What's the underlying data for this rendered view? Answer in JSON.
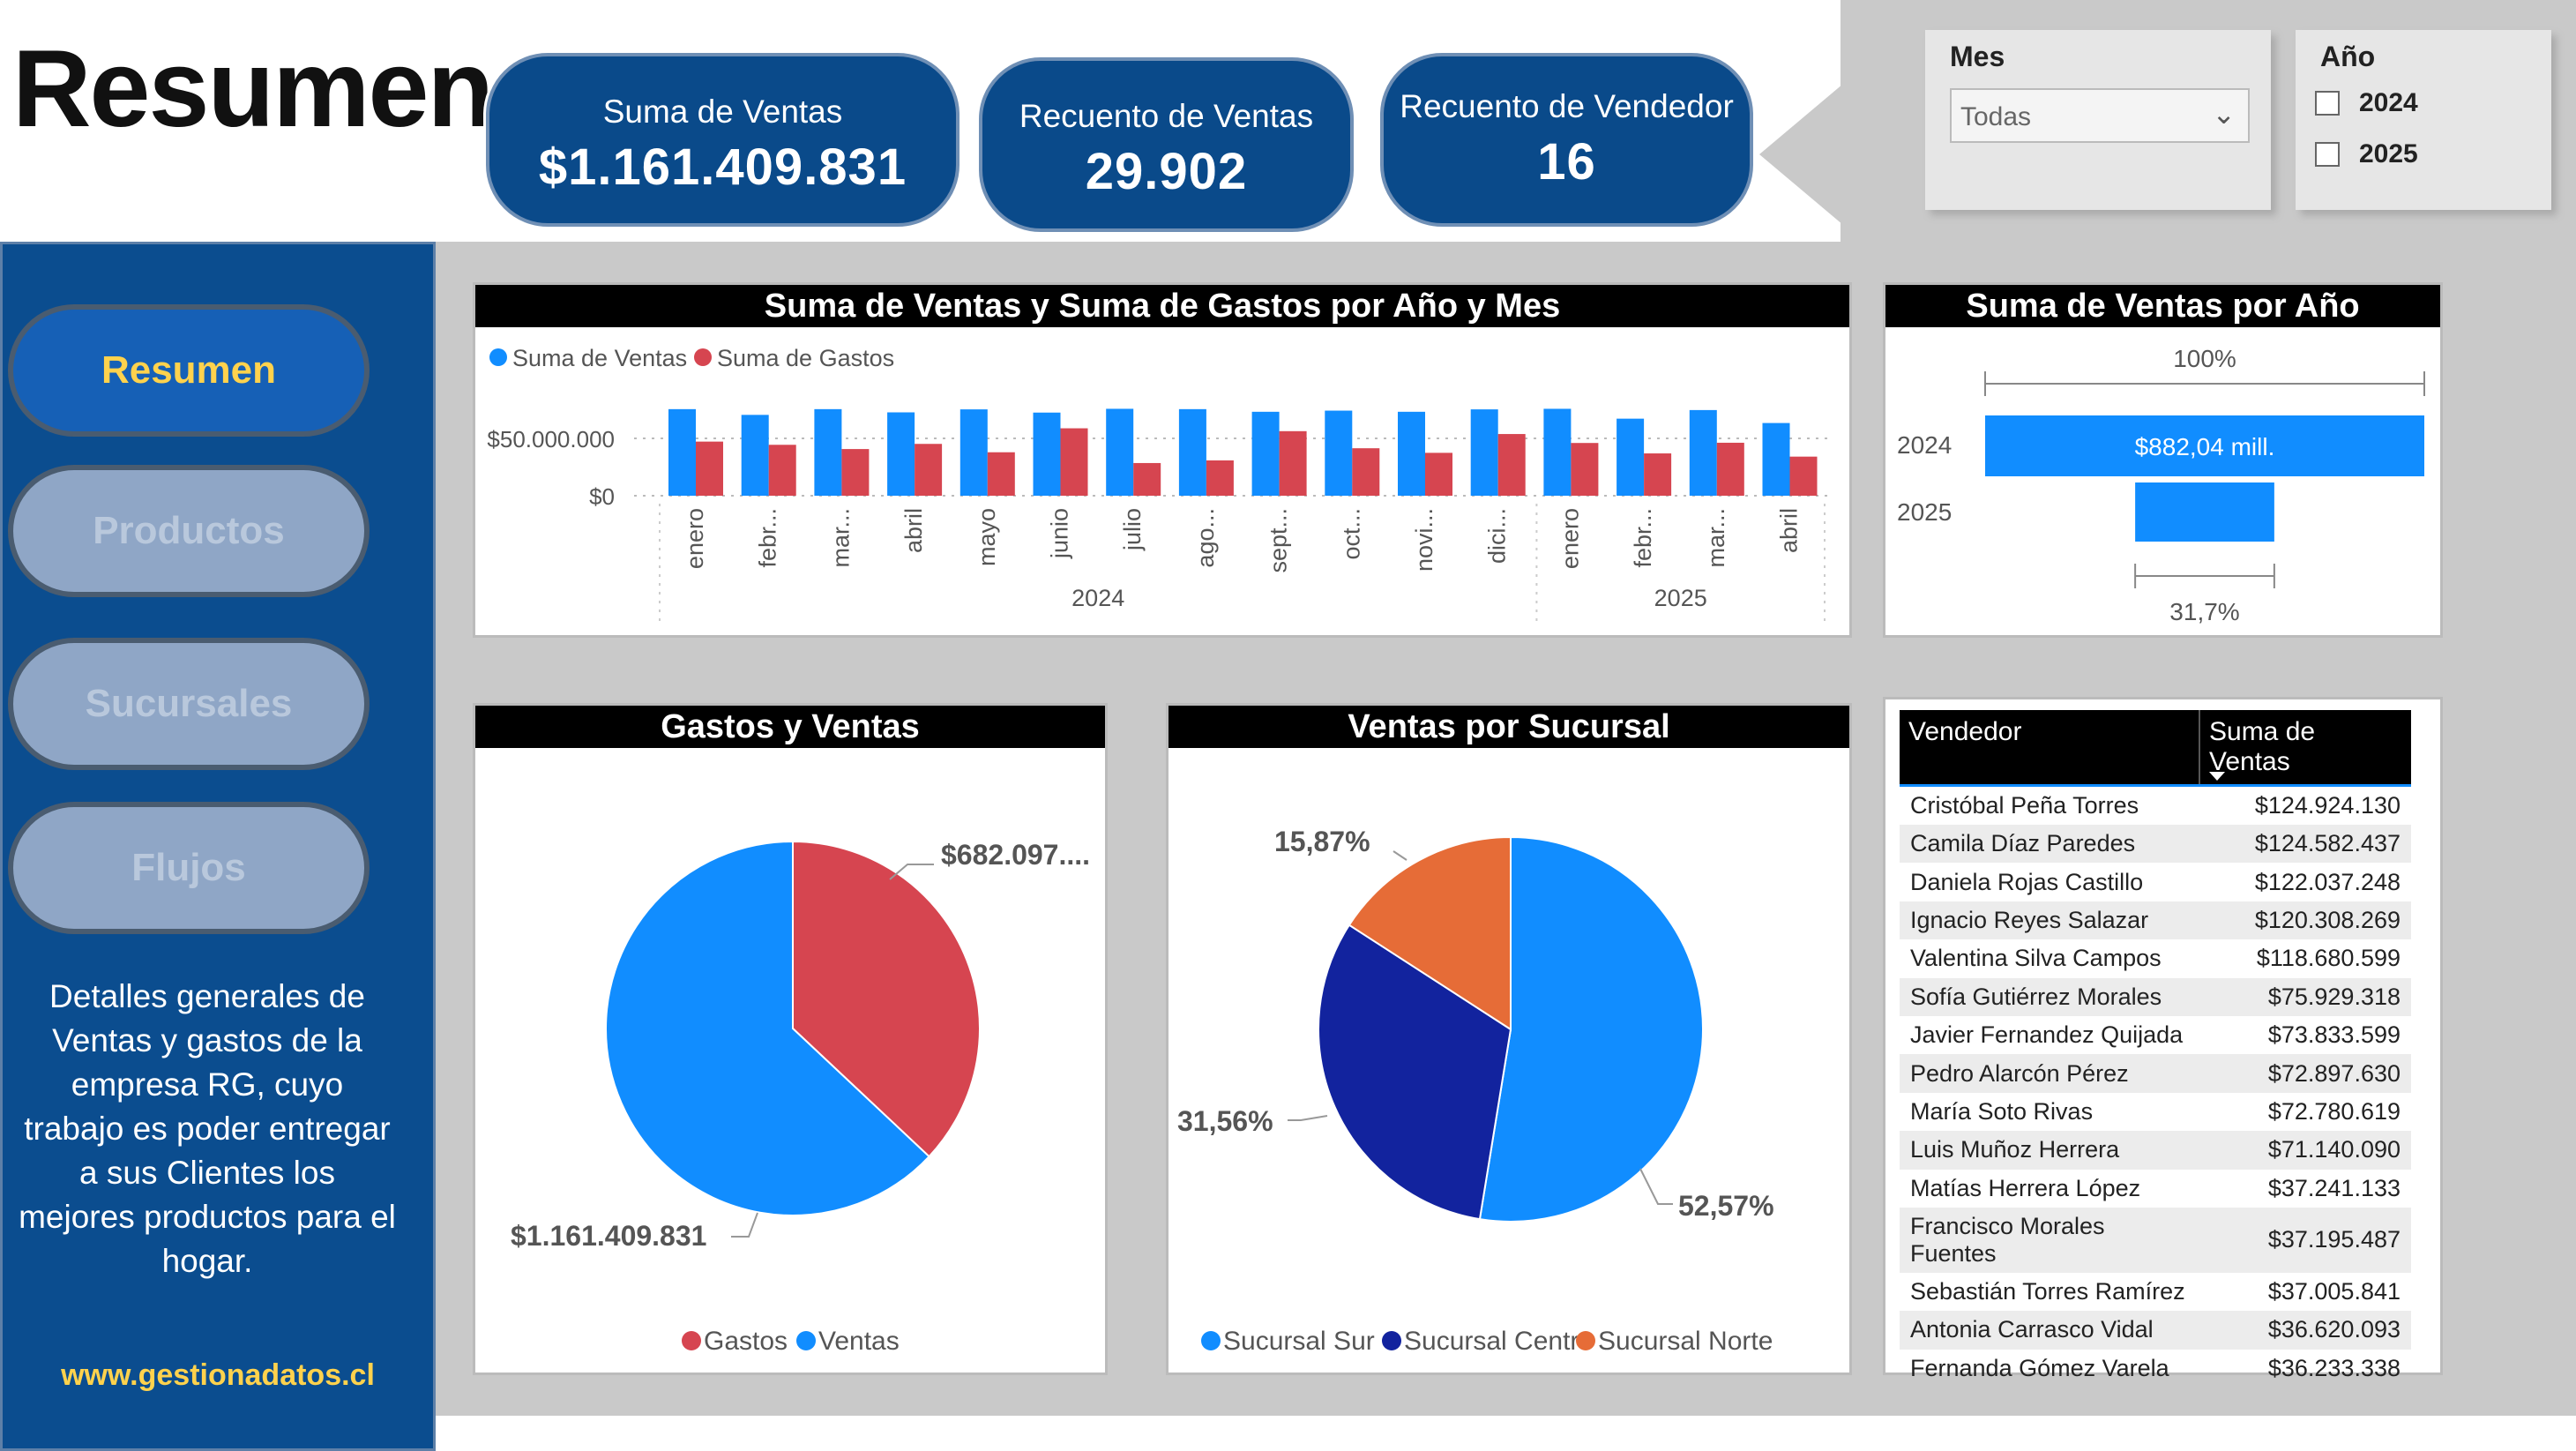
{
  "page_title": "Resumen",
  "kpis": [
    {
      "label": "Suma de Ventas",
      "value": "$1.161.409.831"
    },
    {
      "label": "Recuento de Ventas",
      "value": "29.902"
    },
    {
      "label": "Recuento de Vendedor",
      "value": "16"
    }
  ],
  "slicers": {
    "mes": {
      "label": "Mes",
      "value": "Todas",
      "icon": "chevron-down-icon"
    },
    "anio": {
      "label": "Año",
      "options": [
        {
          "label": "2024",
          "checked": false
        },
        {
          "label": "2025",
          "checked": false
        }
      ]
    }
  },
  "sidebar": {
    "nav": [
      {
        "label": "Resumen",
        "active": true
      },
      {
        "label": "Productos",
        "active": false
      },
      {
        "label": "Sucursales",
        "active": false
      },
      {
        "label": "Flujos",
        "active": false
      }
    ],
    "description": "Detalles generales de Ventas y gastos de la empresa RG, cuyo trabajo es poder entregar a sus Clientes los mejores productos para el hogar.",
    "website": "www.gestionadatos.cl"
  },
  "colors": {
    "ventas": "#118dff",
    "gastos": "#d64550",
    "sur": "#118dff",
    "centro": "#12239e",
    "norte": "#e66c37",
    "sidebar": "#0b4d8f",
    "kpi": "#0a4a8a",
    "accent": "#ffd24d"
  },
  "chart_data": [
    {
      "type": "bar",
      "title": "Suma de Ventas y Suma de Gastos por Año y Mes",
      "legend": "top-left",
      "grid": true,
      "yticks": [
        "$50.000.000",
        "$0"
      ],
      "ylim": [
        0,
        80000000
      ],
      "years": [
        {
          "label": "2024",
          "months": 12
        },
        {
          "label": "2025",
          "months": 4
        }
      ],
      "categories": [
        "enero",
        "febr...",
        "mar...",
        "abril",
        "mayo",
        "junio",
        "julio",
        "ago...",
        "sept...",
        "oct...",
        "novi...",
        "dici...",
        "enero",
        "febr...",
        "mar...",
        "abril"
      ],
      "series": [
        {
          "name": "Suma de Ventas",
          "values": [
            75500000,
            70500000,
            75500000,
            72700000,
            75300000,
            72500000,
            75800000,
            75500000,
            73200000,
            74200000,
            73200000,
            75300000,
            75800000,
            67200000,
            74700000,
            63400000
          ]
        },
        {
          "name": "Suma de Gastos",
          "values": [
            47200000,
            44400000,
            40700000,
            45200000,
            37900000,
            58800000,
            28500000,
            30800000,
            56300000,
            41400000,
            37400000,
            53800000,
            46000000,
            36900000,
            46200000,
            34100000
          ]
        }
      ]
    },
    {
      "type": "bar",
      "title": "Suma de Ventas por Año",
      "orientation": "horizontal",
      "categories": [
        "2024",
        "2025"
      ],
      "values": [
        882040000,
        279400000
      ],
      "data_labels": [
        "$882,04 mill.",
        ""
      ],
      "top_label": "100%",
      "bottom_label": "31,7%"
    },
    {
      "type": "pie",
      "title": "Gastos y Ventas",
      "legend": "bottom",
      "slices": [
        {
          "name": "Gastos",
          "value": 682097000,
          "label": "$682.097...."
        },
        {
          "name": "Ventas",
          "value": 1161409831,
          "label": "$1.161.409.831"
        }
      ]
    },
    {
      "type": "pie",
      "title": "Ventas por Sucursal",
      "legend": "bottom",
      "slices": [
        {
          "name": "Sucursal Sur",
          "value": 52.57,
          "label": "52,57%"
        },
        {
          "name": "Sucursal Centro",
          "value": 31.56,
          "label": "31,56%"
        },
        {
          "name": "Sucursal Norte",
          "value": 15.87,
          "label": "15,87%"
        }
      ]
    },
    {
      "type": "table",
      "columns": [
        "Vendedor",
        "Suma de Ventas"
      ],
      "sort": "Suma de Ventas descending",
      "rows": [
        [
          "Cristóbal Peña Torres",
          "$124.924.130"
        ],
        [
          "Camila Díaz Paredes",
          "$124.582.437"
        ],
        [
          "Daniela Rojas Castillo",
          "$122.037.248"
        ],
        [
          "Ignacio Reyes Salazar",
          "$120.308.269"
        ],
        [
          "Valentina Silva Campos",
          "$118.680.599"
        ],
        [
          "Sofía Gutiérrez Morales",
          "$75.929.318"
        ],
        [
          "Javier Fernandez Quijada",
          "$73.833.599"
        ],
        [
          "Pedro Alarcón Pérez",
          "$72.897.630"
        ],
        [
          "María Soto Rivas",
          "$72.780.619"
        ],
        [
          "Luis Muñoz Herrera",
          "$71.140.090"
        ],
        [
          "Matías Herrera López",
          "$37.241.133"
        ],
        [
          "Francisco Morales Fuentes",
          "$37.195.487"
        ],
        [
          "Sebastián Torres Ramírez",
          "$37.005.841"
        ],
        [
          "Antonia Carrasco Vidal",
          "$36.620.093"
        ],
        [
          "Fernanda Gómez Varela",
          "$36.233.338"
        ]
      ]
    }
  ]
}
